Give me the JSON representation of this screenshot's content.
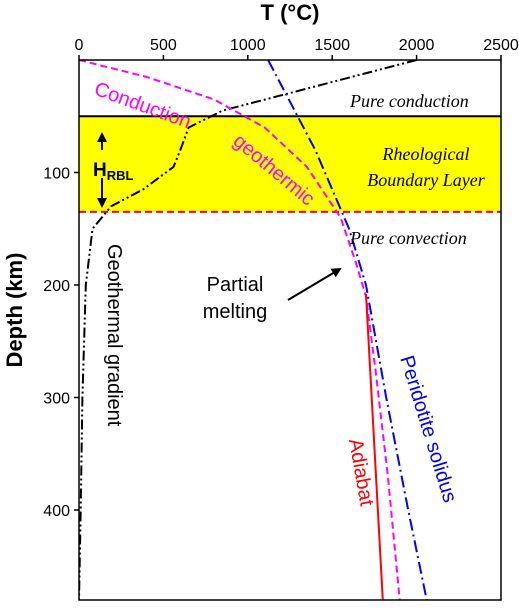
{
  "chart_data": {
    "type": "line",
    "title": "",
    "xlabel": "T (°C)",
    "ylabel": "Depth (km)",
    "xlim": [
      0,
      2500
    ],
    "ylim": [
      480,
      0
    ],
    "x_axis_position": "top",
    "y_inverted": true,
    "grid": false,
    "x_ticks": [
      0,
      500,
      1000,
      1500,
      2000,
      2500
    ],
    "y_ticks": [
      100,
      200,
      300,
      400
    ],
    "bands": [
      {
        "name": "Rheological Boundary Layer",
        "y_from": 50,
        "y_to": 135,
        "color": "#ffff00"
      }
    ],
    "hlines": [
      {
        "y": 50,
        "color": "#000000",
        "style": "solid"
      },
      {
        "y": 135,
        "color": "#ff0000",
        "style": "dashed"
      }
    ],
    "series": [
      {
        "key": "geotherm",
        "name": "Geothermal gradient",
        "color": "#000000",
        "style": "dashdotdot",
        "points": [
          [
            2000,
            0
          ],
          [
            850,
            45
          ],
          [
            650,
            60
          ],
          [
            600,
            80
          ],
          [
            560,
            95
          ],
          [
            380,
            115
          ],
          [
            190,
            130
          ],
          [
            80,
            150
          ],
          [
            40,
            200
          ],
          [
            20,
            300
          ],
          [
            10,
            400
          ],
          [
            0,
            480
          ]
        ]
      },
      {
        "key": "conduction",
        "name": "Conduction geothermic",
        "color": "#ff00ff",
        "style": "dashed",
        "points": [
          [
            0,
            0
          ],
          [
            400,
            15
          ],
          [
            800,
            35
          ],
          [
            1100,
            60
          ],
          [
            1350,
            95
          ],
          [
            1550,
            140
          ],
          [
            1640,
            180
          ],
          [
            1700,
            210
          ],
          [
            1760,
            280
          ],
          [
            1830,
            370
          ],
          [
            1900,
            480
          ]
        ]
      },
      {
        "key": "solidus",
        "name": "Peridotite solidus",
        "color": "#0000ff",
        "style": "dashdot",
        "points": [
          [
            1120,
            0
          ],
          [
            1400,
            80
          ],
          [
            1600,
            150
          ],
          [
            1700,
            200
          ],
          [
            1820,
            300
          ],
          [
            1950,
            400
          ],
          [
            2060,
            480
          ]
        ]
      },
      {
        "key": "adiabat",
        "name": "Adiabat",
        "color": "#ff0000",
        "style": "solid",
        "points": [
          [
            1700,
            208
          ],
          [
            1800,
            480
          ]
        ]
      }
    ],
    "annotations": {
      "pure_conduction": "Pure conduction",
      "rbl_line1": "Rheological",
      "rbl_line2": "Boundary Layer",
      "pure_convection": "Pure convection",
      "hrbl_main": "H",
      "hrbl_sub": "RBL",
      "partial_line1": "Partial",
      "partial_line2": "melting",
      "conduction_word": "Conduction",
      "geothermic_word": "geothermic",
      "geothermal_label": "Geothermal gradient",
      "solidus_label": "Peridotite solidus",
      "adiabat_label": "Adiabat"
    }
  }
}
